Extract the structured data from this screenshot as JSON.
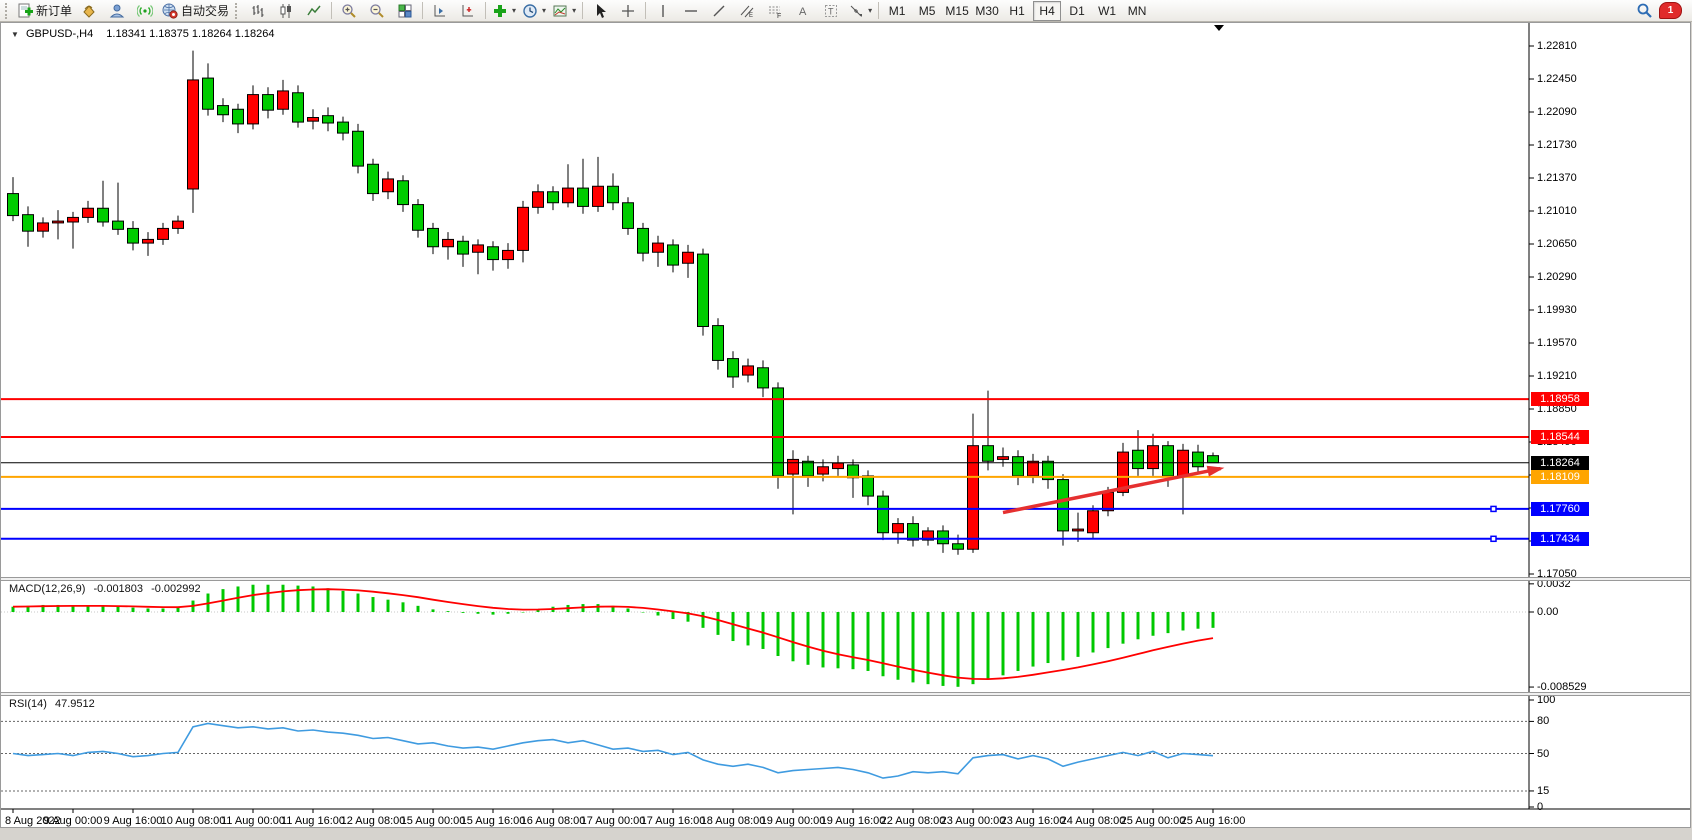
{
  "toolbar": {
    "new_order": "新订单",
    "auto_trading": "自动交易",
    "timeframes": [
      "M1",
      "M5",
      "M15",
      "M30",
      "H1",
      "H4",
      "D1",
      "W1",
      "MN"
    ],
    "active_timeframe": "H4",
    "notification_count": "1"
  },
  "chart": {
    "symbol_title": "GBPUSD-,H4",
    "ohlc_text": "1.18341 1.18375 1.18264 1.18264",
    "collapse_marker": "▼"
  },
  "indicators": {
    "macd_label": "MACD(12,26,9)",
    "macd_value": "-0.001803",
    "macd_signal": "-0.002992",
    "rsi_label": "RSI(14)",
    "rsi_value": "47.9512"
  },
  "price_axis": {
    "ticks": [
      "1.22810",
      "1.22450",
      "1.22090",
      "1.21730",
      "1.21370",
      "1.21010",
      "1.20650",
      "1.20290",
      "1.19930",
      "1.19570",
      "1.19210",
      "1.18850",
      "1.18490",
      "1.18130",
      "1.17770",
      "1.17410",
      "1.17050"
    ]
  },
  "macd_axis": [
    "0.0032",
    "0.00",
    "-0.008529"
  ],
  "rsi_axis": [
    "100",
    "80",
    "50",
    "15",
    "0"
  ],
  "time_axis": [
    "8 Aug 2022",
    "9 Aug 00:00",
    "9 Aug 16:00",
    "10 Aug 08:00",
    "11 Aug 00:00",
    "11 Aug 16:00",
    "12 Aug 08:00",
    "15 Aug 00:00",
    "15 Aug 16:00",
    "16 Aug 08:00",
    "17 Aug 00:00",
    "17 Aug 16:00",
    "18 Aug 08:00",
    "19 Aug 00:00",
    "19 Aug 16:00",
    "22 Aug 08:00",
    "23 Aug 00:00",
    "23 Aug 16:00",
    "24 Aug 08:00",
    "25 Aug 00:00",
    "25 Aug 16:00"
  ],
  "price_labels": [
    {
      "value": "1.18958",
      "bg": "#ff0000",
      "fg": "#ffffff",
      "price": 1.18958
    },
    {
      "value": "1.18544",
      "bg": "#ff0000",
      "fg": "#ffffff",
      "price": 1.18544
    },
    {
      "value": "1.18264",
      "bg": "#000000",
      "fg": "#ffffff",
      "price": 1.18264
    },
    {
      "value": "1.18109",
      "bg": "#ffa500",
      "fg": "#ffffff",
      "price": 1.18109
    },
    {
      "value": "1.17760",
      "bg": "#0000ff",
      "fg": "#ffffff",
      "price": 1.1776
    },
    {
      "value": "1.17434",
      "bg": "#0000ff",
      "fg": "#ffffff",
      "price": 1.17434
    }
  ],
  "chart_data": {
    "type": "candlestick",
    "symbol": "GBPUSD",
    "period": "H4",
    "title": "GBPUSD-,H4",
    "current_ohlc": {
      "open": 1.18341,
      "high": 1.18375,
      "low": 1.18264,
      "close": 1.18264
    },
    "price_axis_range": [
      1.1705,
      1.2281
    ],
    "up_color": "#ff0000",
    "down_color": "#00cc00",
    "candles": [
      [
        1.212,
        1.2138,
        1.209,
        1.2096
      ],
      [
        1.2097,
        1.2106,
        1.2062,
        1.2079
      ],
      [
        1.2079,
        1.2094,
        1.2072,
        1.2088
      ],
      [
        1.2088,
        1.2102,
        1.207,
        1.209
      ],
      [
        1.2089,
        1.21,
        1.206,
        1.2094
      ],
      [
        1.2094,
        1.2112,
        1.2088,
        1.2104
      ],
      [
        1.2104,
        1.2134,
        1.2084,
        1.2089
      ],
      [
        1.209,
        1.2132,
        1.2075,
        1.2081
      ],
      [
        1.2082,
        1.209,
        1.2058,
        1.2066
      ],
      [
        1.2066,
        1.2078,
        1.2052,
        1.207
      ],
      [
        1.207,
        1.2088,
        1.2064,
        1.2082
      ],
      [
        1.2082,
        1.2096,
        1.2076,
        1.209
      ],
      [
        1.2125,
        1.2276,
        1.2099,
        1.2244
      ],
      [
        1.2246,
        1.2262,
        1.2205,
        1.2212
      ],
      [
        1.2216,
        1.2224,
        1.2198,
        1.2206
      ],
      [
        1.2212,
        1.2218,
        1.2186,
        1.2196
      ],
      [
        1.2196,
        1.2238,
        1.219,
        1.2228
      ],
      [
        1.2228,
        1.2236,
        1.2202,
        1.2211
      ],
      [
        1.2212,
        1.2244,
        1.2206,
        1.2232
      ],
      [
        1.223,
        1.2238,
        1.2192,
        1.2198
      ],
      [
        1.2199,
        1.2212,
        1.219,
        1.2203
      ],
      [
        1.2205,
        1.2214,
        1.2188,
        1.2197
      ],
      [
        1.2198,
        1.2204,
        1.2178,
        1.2186
      ],
      [
        1.2188,
        1.2196,
        1.2142,
        1.215
      ],
      [
        1.2152,
        1.2158,
        1.2112,
        1.212
      ],
      [
        1.2122,
        1.2144,
        1.2114,
        1.2136
      ],
      [
        1.2134,
        1.214,
        1.21,
        1.2108
      ],
      [
        1.2108,
        1.2114,
        1.2072,
        1.208
      ],
      [
        1.2082,
        1.2088,
        1.2054,
        1.2062
      ],
      [
        1.2062,
        1.2078,
        1.2048,
        1.207
      ],
      [
        1.2068,
        1.2074,
        1.204,
        1.2054
      ],
      [
        1.2056,
        1.207,
        1.2032,
        1.2064
      ],
      [
        1.2062,
        1.2068,
        1.2036,
        1.2048
      ],
      [
        1.2048,
        1.2066,
        1.2038,
        1.2058
      ],
      [
        1.2058,
        1.2112,
        1.2045,
        1.2105
      ],
      [
        1.2105,
        1.213,
        1.2098,
        1.2122
      ],
      [
        1.2122,
        1.2128,
        1.2102,
        1.211
      ],
      [
        1.211,
        1.2152,
        1.2105,
        1.2126
      ],
      [
        1.2126,
        1.2158,
        1.2098,
        1.2106
      ],
      [
        1.2106,
        1.216,
        1.21,
        1.2128
      ],
      [
        1.2128,
        1.2142,
        1.2102,
        1.211
      ],
      [
        1.211,
        1.2116,
        1.2075,
        1.2082
      ],
      [
        1.2082,
        1.2088,
        1.2046,
        1.2055
      ],
      [
        1.2056,
        1.2074,
        1.204,
        1.2066
      ],
      [
        1.2064,
        1.207,
        1.2034,
        1.2042
      ],
      [
        1.2044,
        1.2064,
        1.2028,
        1.2056
      ],
      [
        1.2054,
        1.206,
        1.1965,
        1.1975
      ],
      [
        1.1976,
        1.1984,
        1.1928,
        1.1938
      ],
      [
        1.194,
        1.1948,
        1.1908,
        1.192
      ],
      [
        1.1922,
        1.194,
        1.1914,
        1.1932
      ],
      [
        1.193,
        1.1938,
        1.1898,
        1.1908
      ],
      [
        1.1908,
        1.1914,
        1.1798,
        1.1812
      ],
      [
        1.1814,
        1.184,
        1.177,
        1.183
      ],
      [
        1.1828,
        1.1834,
        1.18,
        1.1812
      ],
      [
        1.1814,
        1.183,
        1.1806,
        1.1822
      ],
      [
        1.182,
        1.1834,
        1.1812,
        1.1826
      ],
      [
        1.1824,
        1.183,
        1.1788,
        1.181
      ],
      [
        1.1812,
        1.1818,
        1.178,
        1.179
      ],
      [
        1.179,
        1.1796,
        1.1742,
        1.175
      ],
      [
        1.175,
        1.1766,
        1.1738,
        1.176
      ],
      [
        1.176,
        1.1768,
        1.1735,
        1.1742
      ],
      [
        1.1742,
        1.1756,
        1.1736,
        1.1752
      ],
      [
        1.1752,
        1.1758,
        1.1728,
        1.1738
      ],
      [
        1.1738,
        1.1748,
        1.1726,
        1.1732
      ],
      [
        1.1732,
        1.188,
        1.1728,
        1.1845
      ],
      [
        1.1845,
        1.1905,
        1.1818,
        1.1828
      ],
      [
        1.183,
        1.1843,
        1.1822,
        1.1833
      ],
      [
        1.1833,
        1.184,
        1.1802,
        1.1812
      ],
      [
        1.1812,
        1.1836,
        1.1804,
        1.1828
      ],
      [
        1.1828,
        1.1834,
        1.1798,
        1.1808
      ],
      [
        1.1808,
        1.1814,
        1.1736,
        1.1752
      ],
      [
        1.1752,
        1.1772,
        1.174,
        1.1754
      ],
      [
        1.175,
        1.178,
        1.1744,
        1.1774
      ],
      [
        1.1774,
        1.18,
        1.1768,
        1.1794
      ],
      [
        1.1794,
        1.1848,
        1.179,
        1.1838
      ],
      [
        1.184,
        1.1862,
        1.1812,
        1.182
      ],
      [
        1.182,
        1.1858,
        1.1812,
        1.1845
      ],
      [
        1.1845,
        1.185,
        1.18,
        1.1812
      ],
      [
        1.1812,
        1.1847,
        1.177,
        1.184
      ],
      [
        1.1838,
        1.1846,
        1.1815,
        1.1822
      ],
      [
        1.18341,
        1.18375,
        1.18264,
        1.18264
      ]
    ],
    "horizontal_lines": [
      {
        "price": 1.18958,
        "color": "#ff0000",
        "width": 2,
        "handles": false
      },
      {
        "price": 1.18544,
        "color": "#ff0000",
        "width": 2,
        "handles": false
      },
      {
        "price": 1.18264,
        "color": "#000000",
        "width": 1,
        "handles": false
      },
      {
        "price": 1.18109,
        "color": "#ffa500",
        "width": 2,
        "handles": false
      },
      {
        "price": 1.1776,
        "color": "#0000ff",
        "width": 2,
        "handles": true
      },
      {
        "price": 1.17434,
        "color": "#0000ff",
        "width": 2,
        "handles": true
      }
    ],
    "trend_arrow": {
      "from_index": 66,
      "from_price": 1.1772,
      "to_index": 80.5,
      "to_price": 1.182,
      "color": "#e53030"
    },
    "macd": {
      "params": [
        12,
        26,
        9
      ],
      "hist_color": "#00c800",
      "signal_color": "#ff0000",
      "axis_range": [
        -0.008529,
        0.0032
      ],
      "histogram": [
        0.0006,
        0.0007,
        0.0008,
        0.0008,
        0.0007,
        0.0007,
        0.0007,
        0.0006,
        0.0005,
        0.0004,
        0.0004,
        0.0005,
        0.0013,
        0.0021,
        0.0026,
        0.0029,
        0.0031,
        0.0031,
        0.0031,
        0.003,
        0.0029,
        0.0027,
        0.0024,
        0.0021,
        0.0017,
        0.0014,
        0.0011,
        0.0007,
        0.0003,
        0.0001,
        -0.0001,
        -0.0002,
        -0.0003,
        -0.0002,
        0.0,
        0.0003,
        0.0006,
        0.0008,
        0.0009,
        0.0009,
        0.0007,
        0.0004,
        0.0,
        -0.0004,
        -0.0008,
        -0.0011,
        -0.0018,
        -0.0026,
        -0.0033,
        -0.0038,
        -0.0042,
        -0.005,
        -0.0056,
        -0.006,
        -0.0063,
        -0.0064,
        -0.0065,
        -0.0067,
        -0.0073,
        -0.0077,
        -0.008,
        -0.0082,
        -0.0084,
        -0.0085,
        -0.0082,
        -0.0077,
        -0.0072,
        -0.0067,
        -0.0062,
        -0.0058,
        -0.0055,
        -0.0051,
        -0.0046,
        -0.0041,
        -0.0036,
        -0.0031,
        -0.0027,
        -0.0024,
        -0.0021,
        -0.0019,
        -0.0018
      ]
    },
    "rsi": {
      "period": 14,
      "color": "#3f9be0",
      "levels": [
        80,
        50,
        15
      ],
      "axis_range": [
        0,
        100
      ],
      "values": [
        50,
        48,
        49,
        50,
        48,
        51,
        52,
        50,
        47,
        48,
        50,
        51,
        75,
        78,
        76,
        74,
        75,
        73,
        74,
        71,
        72,
        70,
        69,
        67,
        64,
        65,
        62,
        59,
        60,
        57,
        55,
        56,
        54,
        57,
        60,
        62,
        63,
        60,
        62,
        58,
        54,
        55,
        52,
        53,
        49,
        51,
        44,
        40,
        38,
        40,
        37,
        32,
        34,
        35,
        36,
        37,
        35,
        32,
        27,
        29,
        33,
        32,
        33,
        31,
        46,
        48,
        49,
        45,
        48,
        45,
        38,
        42,
        45,
        48,
        51,
        48,
        52,
        46,
        50,
        49,
        47.95
      ]
    }
  }
}
